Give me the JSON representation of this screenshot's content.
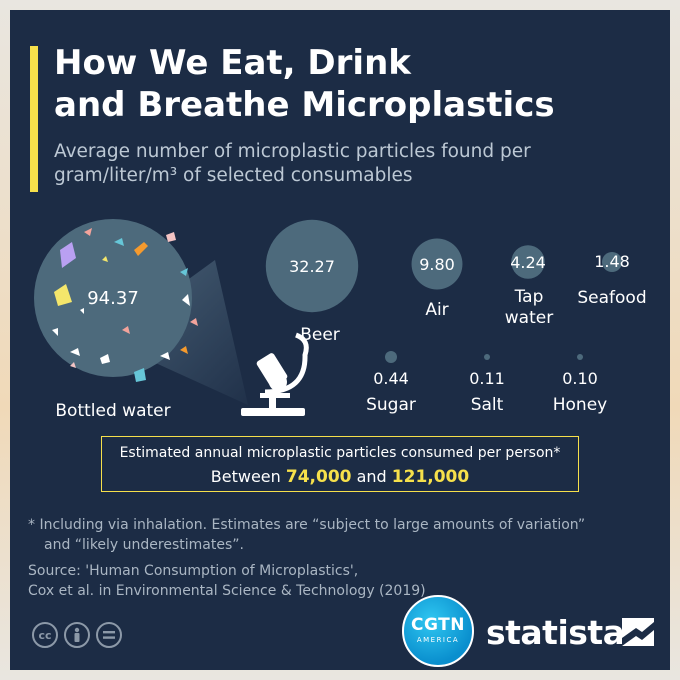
{
  "title": "How We Eat, Drink\nand Breathe Microplastics",
  "subtitle": "Average number of microplastic particles found per\ngram/liter/m³ of selected consumables",
  "chart_data": {
    "type": "bubble",
    "unit": "microplastic particles per gram/liter/m³",
    "items": [
      {
        "label": "Bottled water",
        "value": 94.37,
        "value_text": "94.37"
      },
      {
        "label": "Beer",
        "value": 32.27,
        "value_text": "32.27"
      },
      {
        "label": "Air",
        "value": 9.8,
        "value_text": "9.80"
      },
      {
        "label": "Tap water",
        "value": 4.24,
        "value_text": "4.24"
      },
      {
        "label": "Seafood",
        "value": 1.48,
        "value_text": "1.48"
      },
      {
        "label": "Sugar",
        "value": 0.44,
        "value_text": "0.44"
      },
      {
        "label": "Salt",
        "value": 0.11,
        "value_text": "0.11"
      },
      {
        "label": "Honey",
        "value": 0.1,
        "value_text": "0.10"
      }
    ]
  },
  "estimate": {
    "line1": "Estimated annual microplastic particles consumed per person*",
    "prefix": "Between",
    "low": "74,000",
    "conjunction": "and",
    "high": "121,000"
  },
  "footnote": {
    "line1": "* Including via inhalation. Estimates are “subject to large amounts of variation”",
    "line2": "and “likely underestimates”."
  },
  "source": {
    "line1": "Source: 'Human Consumption of Microplastics',",
    "line2": "Cox et al. in Environmental Science & Technology (2019)"
  },
  "logos": {
    "cgtn_main": "CGTN",
    "cgtn_sub": "AMERICA",
    "statista": "statista"
  },
  "license_icons": [
    "cc-icon",
    "attribution-icon",
    "no-derivatives-icon"
  ],
  "colors": {
    "background": "#1c2c45",
    "bubble": "#4d6a7c",
    "accent": "#f6e04b"
  }
}
